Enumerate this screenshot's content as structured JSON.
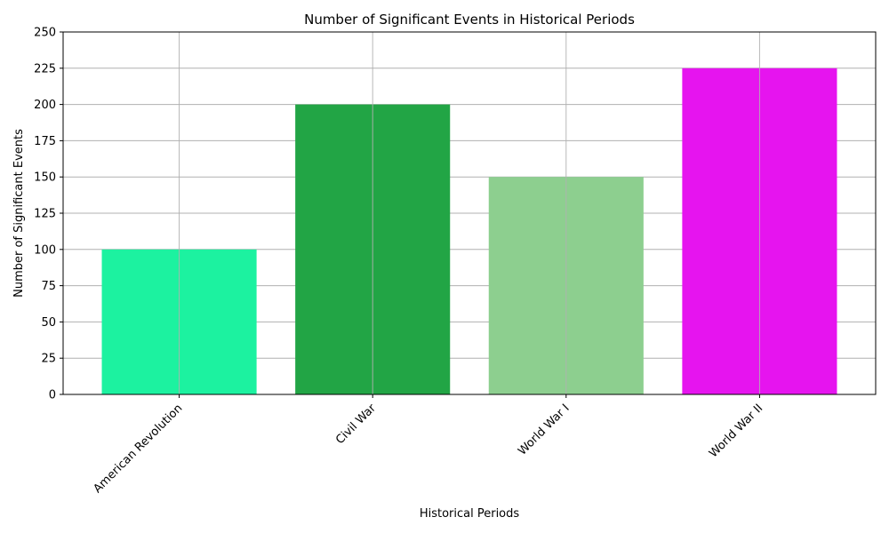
{
  "chart_data": {
    "type": "bar",
    "title": "Number of Significant Events in Historical Periods",
    "xlabel": "Historical Periods",
    "ylabel": "Number of Significant Events",
    "categories": [
      "American Revolution",
      "Civil War",
      "World War I",
      "World War II"
    ],
    "values": [
      100,
      200,
      150,
      225
    ],
    "colors": [
      "#1cf2a0",
      "#22a545",
      "#8dcf8f",
      "#e614ef"
    ],
    "ylim": [
      0,
      250
    ],
    "yticks": [
      0,
      25,
      50,
      75,
      100,
      125,
      150,
      175,
      200,
      225,
      250
    ],
    "grid": true,
    "xtick_rotation": 45
  }
}
